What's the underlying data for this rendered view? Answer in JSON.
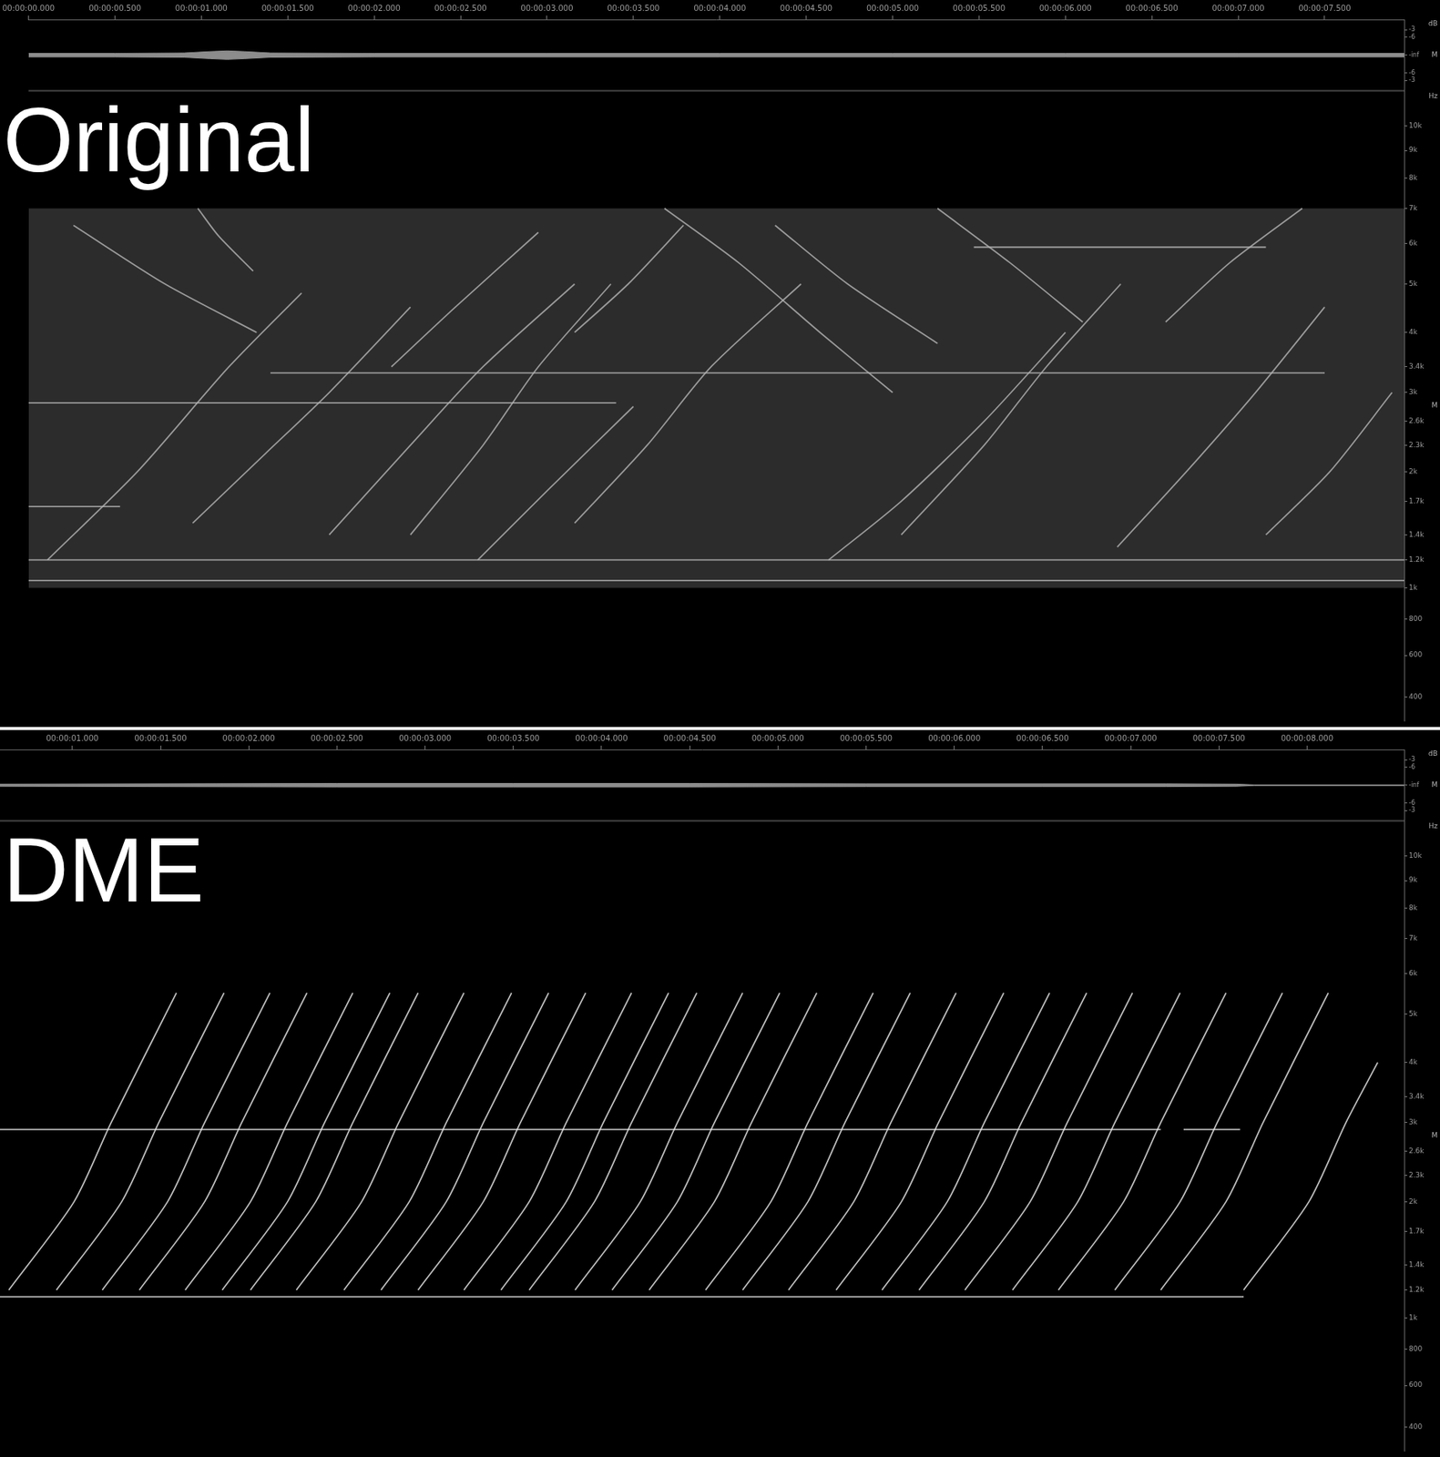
{
  "chart_data": [
    {
      "type": "spectrogram",
      "title": "Original",
      "y_unit": "Hz",
      "grid": false,
      "xlim": [
        0,
        7.96
      ],
      "xticks": [
        {
          "value": 0,
          "label": "00:00:00.000"
        },
        {
          "value": 0.5,
          "label": "00:00:00.500"
        },
        {
          "value": 1,
          "label": "00:00:01.000"
        },
        {
          "value": 1.5,
          "label": "00:00:01.500"
        },
        {
          "value": 2,
          "label": "00:00:02.000"
        },
        {
          "value": 2.5,
          "label": "00:00:02.500"
        },
        {
          "value": 3,
          "label": "00:00:03.000"
        },
        {
          "value": 3.5,
          "label": "00:00:03.500"
        },
        {
          "value": 4,
          "label": "00:00:04.000"
        },
        {
          "value": 4.5,
          "label": "00:00:04.500"
        },
        {
          "value": 5,
          "label": "00:00:05.000"
        },
        {
          "value": 5.5,
          "label": "00:00:05.500"
        },
        {
          "value": 6,
          "label": "00:00:06.000"
        },
        {
          "value": 6.5,
          "label": "00:00:06.500"
        },
        {
          "value": 7,
          "label": "00:00:07.000"
        },
        {
          "value": 7.5,
          "label": "00:00:07.500"
        }
      ],
      "ylim": [
        300,
        11600
      ],
      "yticks": [
        400,
        600,
        800,
        {
          "value": 1000,
          "label": "1k"
        },
        {
          "value": 1200,
          "label": "1.2k"
        },
        {
          "value": 1400,
          "label": "1.4k"
        },
        {
          "value": 1700,
          "label": "1.7k"
        },
        {
          "value": 2000,
          "label": "2k"
        },
        {
          "value": 2300,
          "label": "2.3k"
        },
        {
          "value": 2600,
          "label": "2.6k"
        },
        {
          "value": 3000,
          "label": "3k"
        },
        {
          "value": 3400,
          "label": "3.4k"
        },
        {
          "value": 4000,
          "label": "4k"
        },
        {
          "value": 5000,
          "label": "5k"
        },
        {
          "value": 6000,
          "label": "6k"
        },
        {
          "value": 7000,
          "label": "7k"
        },
        {
          "value": 8000,
          "label": "8k"
        },
        {
          "value": 9000,
          "label": "9k"
        },
        {
          "value": 10000,
          "label": "10k"
        }
      ],
      "noise_band": [
        1000,
        7000
      ],
      "traces": [
        {
          "x": [
            0,
            7.96
          ],
          "y": [
            1200,
            1200
          ]
        },
        {
          "x": [
            0,
            7.96
          ],
          "y": [
            1050,
            1050
          ]
        },
        {
          "x": [
            1.4,
            7.5
          ],
          "y": [
            3300,
            3300
          ]
        },
        {
          "x": [
            0,
            3.4
          ],
          "y": [
            2850,
            2850
          ]
        },
        {
          "x": [
            0,
            0.53
          ],
          "y": [
            1650,
            1650
          ]
        },
        {
          "x": [
            5.47,
            7.16
          ],
          "y": [
            5900,
            5900
          ]
        },
        {
          "x": [
            0.11,
            0.63,
            1.16,
            1.58
          ],
          "y": [
            1200,
            2000,
            3400,
            4800
          ]
        },
        {
          "x": [
            0.95,
            1.37,
            1.74,
            2.21
          ],
          "y": [
            1500,
            2200,
            3000,
            4500
          ]
        },
        {
          "x": [
            1.74,
            2.21,
            2.63,
            3.16
          ],
          "y": [
            1400,
            2300,
            3400,
            5000
          ]
        },
        {
          "x": [
            2.21,
            2.63,
            2.95,
            3.37
          ],
          "y": [
            1400,
            2300,
            3400,
            5000
          ]
        },
        {
          "x": [
            2.6,
            3.0,
            3.5
          ],
          "y": [
            1200,
            1800,
            2800
          ]
        },
        {
          "x": [
            3.16,
            3.58,
            3.95,
            4.47
          ],
          "y": [
            1500,
            2300,
            3400,
            5000
          ]
        },
        {
          "x": [
            4.63,
            5.05,
            5.53,
            6.0
          ],
          "y": [
            1200,
            1700,
            2600,
            4000
          ]
        },
        {
          "x": [
            5.05,
            5.53,
            5.89,
            6.32
          ],
          "y": [
            1400,
            2300,
            3400,
            5000
          ]
        },
        {
          "x": [
            6.3,
            6.7,
            7.1,
            7.5
          ],
          "y": [
            1300,
            2000,
            3000,
            4500
          ]
        },
        {
          "x": [
            7.16,
            7.53,
            7.89
          ],
          "y": [
            1400,
            2000,
            3000
          ]
        },
        {
          "x": [
            0.98,
            1.1,
            1.3
          ],
          "y": [
            7000,
            6200,
            5300
          ]
        },
        {
          "x": [
            0.26,
            0.79,
            1.32
          ],
          "y": [
            6500,
            5000,
            4000
          ]
        },
        {
          "x": [
            3.68,
            4.11,
            4.58,
            5.0
          ],
          "y": [
            7000,
            5500,
            4000,
            3000
          ]
        },
        {
          "x": [
            4.32,
            4.74,
            5.26
          ],
          "y": [
            6500,
            5000,
            3800
          ]
        },
        {
          "x": [
            5.26,
            5.68,
            6.1
          ],
          "y": [
            7000,
            5500,
            4200
          ]
        },
        {
          "x": [
            2.1,
            2.47,
            2.95
          ],
          "y": [
            3400,
            4500,
            6300
          ]
        },
        {
          "x": [
            3.16,
            3.47,
            3.79
          ],
          "y": [
            4000,
            5000,
            6500
          ]
        },
        {
          "x": [
            6.58,
            6.95,
            7.37
          ],
          "y": [
            4200,
            5500,
            7000
          ]
        }
      ],
      "waveform": {
        "unit": "dB",
        "channel": "M",
        "ylim": [
          -1,
          1
        ],
        "yticks": [
          {
            "value": -0.708,
            "label": "-3"
          },
          {
            "value": -0.5,
            "label": "-6"
          },
          {
            "value": 0,
            "label": "-inf"
          },
          {
            "value": 0.5,
            "label": "-6"
          },
          {
            "value": 0.708,
            "label": "-3"
          }
        ],
        "x": [
          0,
          0.5,
          0.9,
          1.05,
          1.15,
          1.25,
          1.4,
          2,
          3,
          4,
          5,
          6,
          7,
          7.96
        ],
        "upper": [
          0.05,
          0.05,
          0.06,
          0.1,
          0.12,
          0.1,
          0.06,
          0.05,
          0.05,
          0.05,
          0.05,
          0.05,
          0.05,
          0.05
        ],
        "lower": [
          -0.05,
          -0.05,
          -0.06,
          -0.1,
          -0.12,
          -0.1,
          -0.06,
          -0.05,
          -0.05,
          -0.05,
          -0.05,
          -0.05,
          -0.05,
          -0.05
        ]
      }
    },
    {
      "type": "spectrogram",
      "title": "DME",
      "y_unit": "Hz",
      "grid": false,
      "xlim": [
        0.59,
        8.55
      ],
      "xticks": [
        {
          "value": 1,
          "label": "00:00:01.000"
        },
        {
          "value": 1.5,
          "label": "00:00:01.500"
        },
        {
          "value": 2,
          "label": "00:00:02.000"
        },
        {
          "value": 2.5,
          "label": "00:00:02.500"
        },
        {
          "value": 3,
          "label": "00:00:03.000"
        },
        {
          "value": 3.5,
          "label": "00:00:03.500"
        },
        {
          "value": 4,
          "label": "00:00:04.000"
        },
        {
          "value": 4.5,
          "label": "00:00:04.500"
        },
        {
          "value": 5,
          "label": "00:00:05.000"
        },
        {
          "value": 5.5,
          "label": "00:00:05.500"
        },
        {
          "value": 6,
          "label": "00:00:06.000"
        },
        {
          "value": 6.5,
          "label": "00:00:06.500"
        },
        {
          "value": 7,
          "label": "00:00:07.000"
        },
        {
          "value": 7.5,
          "label": "00:00:07.500"
        },
        {
          "value": 8,
          "label": "00:00:08.000"
        }
      ],
      "ylim": [
        300,
        11600
      ],
      "yticks": [
        400,
        600,
        800,
        {
          "value": 1000,
          "label": "1k"
        },
        {
          "value": 1200,
          "label": "1.2k"
        },
        {
          "value": 1400,
          "label": "1.4k"
        },
        {
          "value": 1700,
          "label": "1.7k"
        },
        {
          "value": 2000,
          "label": "2k"
        },
        {
          "value": 2300,
          "label": "2.3k"
        },
        {
          "value": 2600,
          "label": "2.6k"
        },
        {
          "value": 3000,
          "label": "3k"
        },
        {
          "value": 3400,
          "label": "3.4k"
        },
        {
          "value": 4000,
          "label": "4k"
        },
        {
          "value": 5000,
          "label": "5k"
        },
        {
          "value": 6000,
          "label": "6k"
        },
        {
          "value": 7000,
          "label": "7k"
        },
        {
          "value": 8000,
          "label": "8k"
        },
        {
          "value": 9000,
          "label": "9k"
        },
        {
          "value": 10000,
          "label": "10k"
        }
      ],
      "traces": [
        {
          "x": [
            0.59,
            7.64
          ],
          "y": [
            1150,
            1150
          ]
        },
        {
          "x": [
            0.59,
            7.17
          ],
          "y": [
            2900,
            2900
          ]
        },
        {
          "x": [
            7.3,
            7.62
          ],
          "y": [
            2900,
            2900
          ]
        },
        {
          "x": [
            0.64,
            1.01,
            1.22,
            1.59
          ],
          "y": [
            1200,
            2000,
            3000,
            5500
          ]
        },
        {
          "x": [
            0.91,
            1.28,
            1.49,
            1.86
          ],
          "y": [
            1200,
            2000,
            3000,
            5500
          ]
        },
        {
          "x": [
            1.17,
            1.54,
            1.75,
            2.12
          ],
          "y": [
            1200,
            2000,
            3000,
            5500
          ]
        },
        {
          "x": [
            1.38,
            1.75,
            1.96,
            2.33
          ],
          "y": [
            1200,
            2000,
            3000,
            5500
          ]
        },
        {
          "x": [
            1.64,
            2.01,
            2.22,
            2.59
          ],
          "y": [
            1200,
            2000,
            3000,
            5500
          ]
        },
        {
          "x": [
            1.85,
            2.22,
            2.43,
            2.8
          ],
          "y": [
            1200,
            2000,
            3000,
            5500
          ]
        },
        {
          "x": [
            2.01,
            2.38,
            2.59,
            2.96
          ],
          "y": [
            1200,
            2000,
            3000,
            5500
          ]
        },
        {
          "x": [
            2.27,
            2.64,
            2.85,
            3.22
          ],
          "y": [
            1200,
            2000,
            3000,
            5500
          ]
        },
        {
          "x": [
            2.54,
            2.91,
            3.12,
            3.49
          ],
          "y": [
            1200,
            2000,
            3000,
            5500
          ]
        },
        {
          "x": [
            2.75,
            3.12,
            3.33,
            3.7
          ],
          "y": [
            1200,
            2000,
            3000,
            5500
          ]
        },
        {
          "x": [
            2.96,
            3.33,
            3.54,
            3.91
          ],
          "y": [
            1200,
            2000,
            3000,
            5500
          ]
        },
        {
          "x": [
            3.22,
            3.59,
            3.8,
            4.17
          ],
          "y": [
            1200,
            2000,
            3000,
            5500
          ]
        },
        {
          "x": [
            3.43,
            3.8,
            4.01,
            4.38
          ],
          "y": [
            1200,
            2000,
            3000,
            5500
          ]
        },
        {
          "x": [
            3.59,
            3.96,
            4.17,
            4.54
          ],
          "y": [
            1200,
            2000,
            3000,
            5500
          ]
        },
        {
          "x": [
            3.85,
            4.22,
            4.43,
            4.8
          ],
          "y": [
            1200,
            2000,
            3000,
            5500
          ]
        },
        {
          "x": [
            4.06,
            4.43,
            4.64,
            5.01
          ],
          "y": [
            1200,
            2000,
            3000,
            5500
          ]
        },
        {
          "x": [
            4.27,
            4.64,
            4.85,
            5.22
          ],
          "y": [
            1200,
            2000,
            3000,
            5500
          ]
        },
        {
          "x": [
            4.59,
            4.96,
            5.17,
            5.54
          ],
          "y": [
            1200,
            2000,
            3000,
            5500
          ]
        },
        {
          "x": [
            4.8,
            5.17,
            5.38,
            5.75
          ],
          "y": [
            1200,
            2000,
            3000,
            5500
          ]
        },
        {
          "x": [
            5.06,
            5.43,
            5.64,
            6.01
          ],
          "y": [
            1200,
            2000,
            3000,
            5500
          ]
        },
        {
          "x": [
            5.33,
            5.7,
            5.91,
            6.28
          ],
          "y": [
            1200,
            2000,
            3000,
            5500
          ]
        },
        {
          "x": [
            5.59,
            5.96,
            6.17,
            6.54
          ],
          "y": [
            1200,
            2000,
            3000,
            5500
          ]
        },
        {
          "x": [
            5.8,
            6.17,
            6.38,
            6.75
          ],
          "y": [
            1200,
            2000,
            3000,
            5500
          ]
        },
        {
          "x": [
            6.06,
            6.43,
            6.64,
            7.01
          ],
          "y": [
            1200,
            2000,
            3000,
            5500
          ]
        },
        {
          "x": [
            6.33,
            6.7,
            6.91,
            7.28
          ],
          "y": [
            1200,
            2000,
            3000,
            5500
          ]
        },
        {
          "x": [
            6.59,
            6.96,
            7.17,
            7.54
          ],
          "y": [
            1200,
            2000,
            3000,
            5500
          ]
        },
        {
          "x": [
            6.91,
            7.28,
            7.49,
            7.86
          ],
          "y": [
            1200,
            2000,
            3000,
            5500
          ]
        },
        {
          "x": [
            7.17,
            7.54,
            7.75,
            8.12
          ],
          "y": [
            1200,
            2000,
            3000,
            5500
          ]
        },
        {
          "x": [
            7.64,
            8.01,
            8.22,
            8.4
          ],
          "y": [
            1200,
            2000,
            3000,
            4000
          ]
        }
      ],
      "waveform": {
        "unit": "dB",
        "channel": "M",
        "ylim": [
          -1,
          1
        ],
        "yticks": [
          {
            "value": -0.708,
            "label": "-3"
          },
          {
            "value": -0.5,
            "label": "-6"
          },
          {
            "value": 0,
            "label": "-inf"
          },
          {
            "value": 0.5,
            "label": "-6"
          },
          {
            "value": 0.708,
            "label": "-3"
          }
        ],
        "x": [
          0.59,
          1.5,
          2.5,
          3.5,
          4.5,
          5.5,
          6.5,
          7.2,
          7.6,
          7.7,
          8.55
        ],
        "upper": [
          0.03,
          0.04,
          0.05,
          0.05,
          0.05,
          0.04,
          0.04,
          0.04,
          0.03,
          0.01,
          0.01
        ],
        "lower": [
          -0.03,
          -0.04,
          -0.05,
          -0.05,
          -0.05,
          -0.04,
          -0.04,
          -0.04,
          -0.03,
          -0.01,
          -0.01
        ]
      }
    }
  ]
}
